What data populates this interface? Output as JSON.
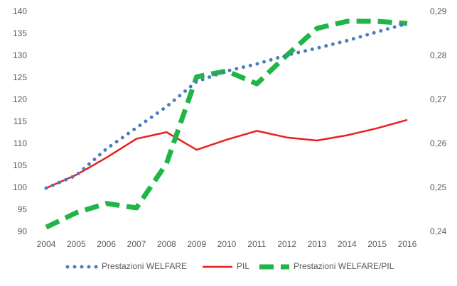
{
  "chart_data": {
    "type": "line",
    "categories": [
      "2004",
      "2005",
      "2006",
      "2007",
      "2008",
      "2009",
      "2010",
      "2011",
      "2012",
      "2013",
      "2014",
      "2015",
      "2016"
    ],
    "ylim": [
      90,
      140
    ],
    "yticks": [
      90,
      95,
      100,
      105,
      110,
      115,
      120,
      125,
      130,
      135,
      140
    ],
    "y2lim": [
      0.24,
      0.29
    ],
    "y2ticks": [
      {
        "value": 0.24,
        "label": "0,24"
      },
      {
        "value": 0.25,
        "label": "0,25"
      },
      {
        "value": 0.26,
        "label": "0,26"
      },
      {
        "value": 0.27,
        "label": "0,27"
      },
      {
        "value": 0.28,
        "label": "0,28"
      },
      {
        "value": 0.29,
        "label": "0,29"
      }
    ],
    "series": [
      {
        "name": "Prestazioni WELFARE",
        "color": "#4a7ebb",
        "style": "dotted",
        "values": [
          100,
          102.9,
          108.9,
          113.7,
          118.5,
          124.2,
          126.6,
          128.2,
          130.2,
          131.8,
          133.5,
          135.5,
          137.4
        ]
      },
      {
        "name": "PIL",
        "color": "#e8201c",
        "style": "solid",
        "values": [
          100,
          103,
          106.9,
          111.2,
          112.7,
          108.7,
          111,
          113,
          111.5,
          110.8,
          112,
          113.6,
          115.5
        ]
      },
      {
        "name": "Prestazioni WELFARE/PIL",
        "color": "#1fb547",
        "style": "dashed",
        "axis": "y2",
        "values": [
          0.2411,
          0.2444,
          0.2465,
          0.2455,
          0.2556,
          0.2753,
          0.2766,
          0.2737,
          0.2802,
          0.2863,
          0.2879,
          0.2879,
          0.2874
        ]
      }
    ]
  }
}
